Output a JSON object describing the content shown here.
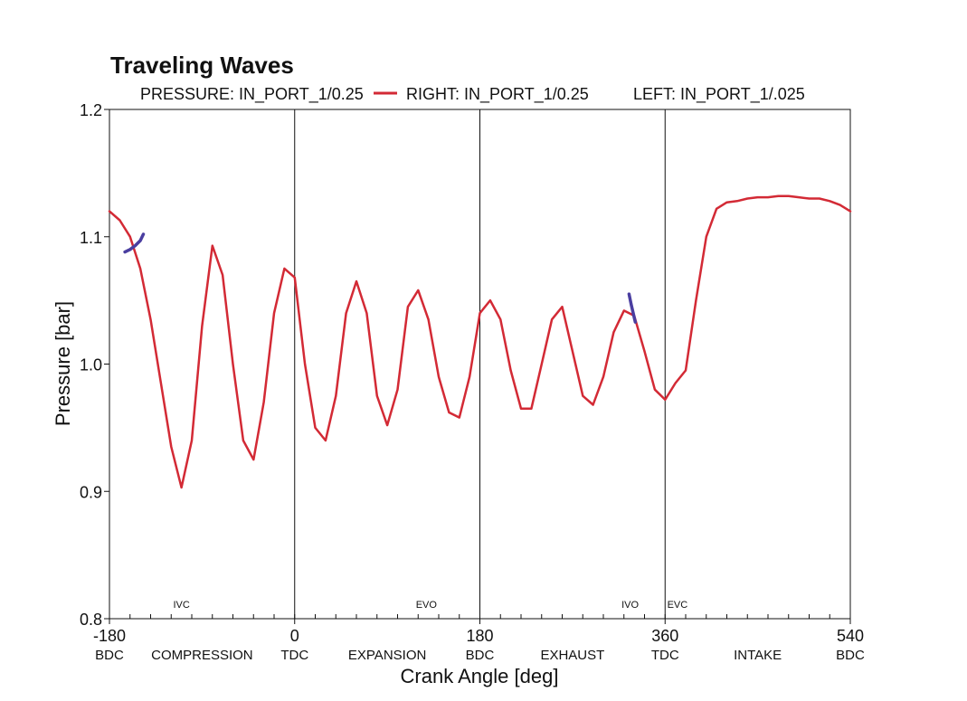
{
  "chart_data": {
    "type": "line",
    "title": "Traveling Waves",
    "xlabel": "Crank Angle [deg]",
    "ylabel": "Pressure [bar]",
    "xlim": [
      -180,
      540
    ],
    "ylim": [
      0.8,
      1.2
    ],
    "x_ticks": [
      -180,
      0,
      180,
      360,
      540
    ],
    "x_tick_labels": [
      "-180",
      "0",
      "180",
      "360",
      "540"
    ],
    "y_ticks": [
      0.8,
      0.9,
      1.0,
      1.1,
      1.2
    ],
    "y_tick_labels": [
      "0.8",
      "0.9",
      "1.0",
      "1.1",
      "1.2"
    ],
    "grid": false,
    "stroke_markers": [
      "BDC",
      "TDC",
      "BDC",
      "TDC",
      "BDC"
    ],
    "phase_labels": [
      {
        "x": -90,
        "text": "COMPRESSION"
      },
      {
        "x": 90,
        "text": "EXPANSION"
      },
      {
        "x": 270,
        "text": "EXHAUST"
      },
      {
        "x": 450,
        "text": "INTAKE"
      }
    ],
    "event_labels": [
      {
        "x": -110,
        "text": "IVC"
      },
      {
        "x": 128,
        "text": "EVO"
      },
      {
        "x": 326,
        "text": "IVO"
      },
      {
        "x": 372,
        "text": "EVC"
      }
    ],
    "vertical_lines": [
      0,
      180,
      360
    ],
    "legend": [
      {
        "text": "PRESSURE: IN_PORT_1/0.25",
        "swatch": false
      },
      {
        "text": "RIGHT: IN_PORT_1/0.25",
        "swatch": true,
        "color": "#d32a35"
      },
      {
        "text": "LEFT: IN_PORT_1/.025",
        "swatch": false
      }
    ],
    "series": [
      {
        "name": "RIGHT: IN_PORT_1/0.25",
        "color": "#d32a35",
        "x": [
          -180,
          -170,
          -160,
          -150,
          -140,
          -130,
          -120,
          -110,
          -100,
          -90,
          -80,
          -70,
          -60,
          -50,
          -40,
          -30,
          -20,
          -10,
          0,
          10,
          20,
          30,
          40,
          50,
          60,
          70,
          80,
          90,
          100,
          110,
          120,
          130,
          140,
          150,
          160,
          170,
          180,
          190,
          200,
          210,
          220,
          230,
          240,
          250,
          260,
          270,
          280,
          290,
          300,
          310,
          320,
          330,
          340,
          350,
          360,
          370,
          380,
          390,
          400,
          410,
          420,
          430,
          440,
          450,
          460,
          470,
          480,
          490,
          500,
          510,
          520,
          530,
          540
        ],
        "y": [
          1.12,
          1.113,
          1.1,
          1.075,
          1.035,
          0.985,
          0.935,
          0.903,
          0.94,
          1.03,
          1.093,
          1.07,
          1.0,
          0.94,
          0.925,
          0.97,
          1.04,
          1.075,
          1.068,
          1.0,
          0.95,
          0.94,
          0.975,
          1.04,
          1.065,
          1.04,
          0.975,
          0.952,
          0.98,
          1.045,
          1.058,
          1.035,
          0.99,
          0.962,
          0.958,
          0.99,
          1.04,
          1.05,
          1.035,
          0.995,
          0.965,
          0.965,
          1.0,
          1.035,
          1.045,
          1.01,
          0.975,
          0.968,
          0.99,
          1.025,
          1.042,
          1.038,
          1.01,
          0.98,
          0.972,
          0.985,
          0.995,
          1.05,
          1.1,
          1.122,
          1.127,
          1.128,
          1.13,
          1.131,
          1.131,
          1.132,
          1.132,
          1.131,
          1.13,
          1.13,
          1.128,
          1.125,
          1.12
        ]
      },
      {
        "name": "LEFT marker 1",
        "color": "#4a3ea0",
        "x": [
          -165,
          -160,
          -155,
          -150,
          -147
        ],
        "y": [
          1.088,
          1.09,
          1.093,
          1.097,
          1.102
        ]
      },
      {
        "name": "LEFT marker 2",
        "color": "#4a3ea0",
        "x": [
          325,
          327,
          329,
          331
        ],
        "y": [
          1.055,
          1.047,
          1.04,
          1.033
        ]
      }
    ]
  }
}
